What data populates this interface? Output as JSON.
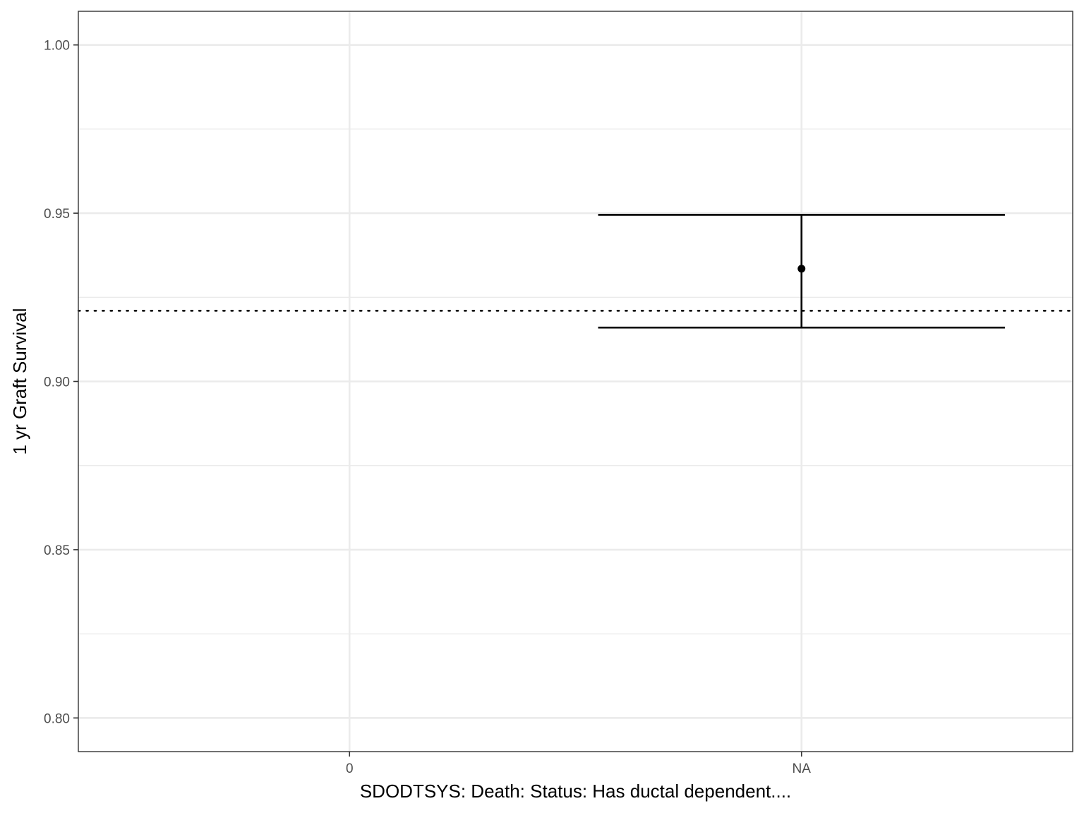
{
  "chart_data": {
    "type": "scatter",
    "title": "",
    "xlabel": "SDODTSYS: Death: Status: Has ductal dependent....",
    "ylabel": "1 yr Graft Survival",
    "categories": [
      "0",
      "NA"
    ],
    "points": [
      {
        "category": "NA",
        "y": 0.9335,
        "ymin": 0.916,
        "ymax": 0.9495
      }
    ],
    "reference_line": {
      "y": 0.921,
      "style": "dotted"
    },
    "ylim": [
      0.79,
      1.01
    ],
    "yticks": [
      0.8,
      0.85,
      0.9,
      0.95,
      1.0
    ],
    "ytick_labels": [
      "0.80",
      "0.85",
      "0.90",
      "0.95",
      "1.00"
    ],
    "grid": true,
    "colors": {
      "marks": "#000000",
      "grid": "#ebebeb",
      "border": "#333333"
    }
  }
}
